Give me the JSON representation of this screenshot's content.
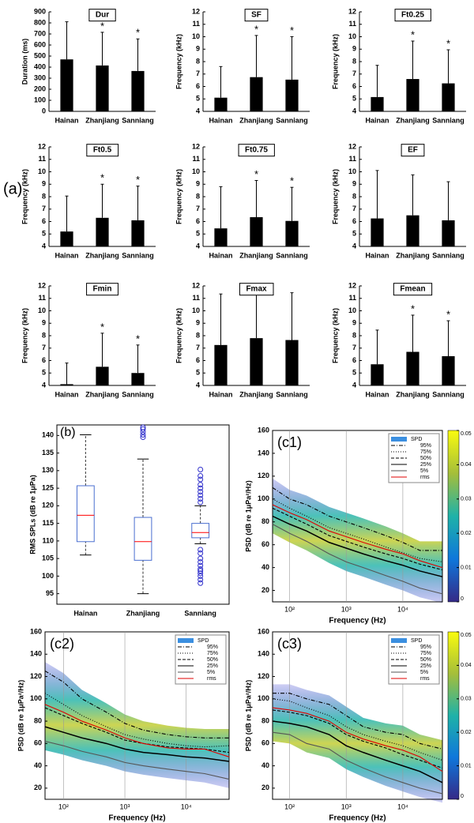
{
  "figure_label": "(a)",
  "chart_data": [
    {
      "type": "bar",
      "title": "Dur",
      "ylabel": "Duration (ms)",
      "categories": [
        "Hainan",
        "Zhanjiang",
        "Sanniang"
      ],
      "values": [
        470,
        415,
        365
      ],
      "errors": [
        340,
        300,
        290
      ],
      "markers": [
        null,
        "*",
        "*"
      ],
      "ylim": [
        0,
        900
      ],
      "yticks": [
        0,
        100,
        200,
        300,
        400,
        500,
        600,
        700,
        800,
        900
      ],
      "color": "#000000"
    },
    {
      "type": "bar",
      "title": "SF",
      "ylabel": "Frequency (kHz)",
      "categories": [
        "Hainan",
        "Zhanjiang",
        "Sanniang"
      ],
      "values": [
        5.1,
        6.75,
        6.55
      ],
      "errors": [
        2.5,
        3.35,
        3.45
      ],
      "markers": [
        null,
        "*",
        "*"
      ],
      "ylim": [
        4,
        12
      ],
      "yticks": [
        4,
        5,
        6,
        7,
        8,
        9,
        10,
        11,
        12
      ],
      "color": "#000000"
    },
    {
      "type": "bar",
      "title": "Ft0.25",
      "ylabel": "Frequency (kHz)",
      "categories": [
        "Hainan",
        "Zhanjiang",
        "Sanniang"
      ],
      "values": [
        5.15,
        6.6,
        6.25
      ],
      "errors": [
        2.55,
        3.05,
        2.7
      ],
      "markers": [
        null,
        "*",
        "*"
      ],
      "ylim": [
        4,
        12
      ],
      "yticks": [
        4,
        5,
        6,
        7,
        8,
        9,
        10,
        11,
        12
      ],
      "color": "#000000"
    },
    {
      "type": "bar",
      "title": "Ft0.5",
      "ylabel": "Frequency (kHz)",
      "categories": [
        "Hainan",
        "Zhanjiang",
        "Sanniang"
      ],
      "values": [
        5.2,
        6.3,
        6.1
      ],
      "errors": [
        2.85,
        2.7,
        2.75
      ],
      "markers": [
        null,
        "*",
        "*"
      ],
      "ylim": [
        4,
        12
      ],
      "yticks": [
        4,
        5,
        6,
        7,
        8,
        9,
        10,
        11,
        12
      ],
      "color": "#000000"
    },
    {
      "type": "bar",
      "title": "Ft0.75",
      "ylabel": "Frequency (kHz)",
      "categories": [
        "Hainan",
        "Zhanjiang",
        "Sanniang"
      ],
      "values": [
        5.45,
        6.35,
        6.05
      ],
      "errors": [
        3.35,
        2.95,
        2.7
      ],
      "markers": [
        null,
        "*",
        "*"
      ],
      "ylim": [
        4,
        12
      ],
      "yticks": [
        4,
        5,
        6,
        7,
        8,
        9,
        10,
        11,
        12
      ],
      "color": "#000000"
    },
    {
      "type": "bar",
      "title": "EF",
      "ylabel": "Frequency (kHz)",
      "categories": [
        "Hainan",
        "Zhanjiang",
        "Sanniang"
      ],
      "values": [
        6.25,
        6.5,
        6.1
      ],
      "errors": [
        3.85,
        3.25,
        3.1
      ],
      "markers": [
        null,
        null,
        null
      ],
      "ylim": [
        4,
        12
      ],
      "yticks": [
        4,
        5,
        6,
        7,
        8,
        9,
        10,
        11,
        12
      ],
      "color": "#000000"
    },
    {
      "type": "bar",
      "title": "Fmin",
      "ylabel": "Frequency (kHz)",
      "categories": [
        "Hainan",
        "Zhanjiang",
        "Sanniang"
      ],
      "values": [
        4.1,
        5.5,
        5.0
      ],
      "errors": [
        1.7,
        2.7,
        2.25
      ],
      "markers": [
        null,
        "*",
        "*"
      ],
      "ylim": [
        4,
        12
      ],
      "yticks": [
        4,
        5,
        6,
        7,
        8,
        9,
        10,
        11,
        12
      ],
      "color": "#000000"
    },
    {
      "type": "bar",
      "title": "Fmax",
      "ylabel": "Frequency (kHz)",
      "categories": [
        "Hainan",
        "Zhanjiang",
        "Sanniang"
      ],
      "values": [
        7.25,
        7.8,
        7.65
      ],
      "errors": [
        4.1,
        3.5,
        3.8
      ],
      "markers": [
        null,
        null,
        null
      ],
      "ylim": [
        4,
        12
      ],
      "yticks": [
        4,
        5,
        6,
        7,
        8,
        9,
        10,
        11,
        12
      ],
      "color": "#000000"
    },
    {
      "type": "bar",
      "title": "Fmean",
      "ylabel": "Frequency (kHz)",
      "categories": [
        "Hainan",
        "Zhanjiang",
        "Sanniang"
      ],
      "values": [
        5.7,
        6.7,
        6.35
      ],
      "errors": [
        2.75,
        2.95,
        2.85
      ],
      "markers": [
        null,
        "*",
        "*"
      ],
      "ylim": [
        4,
        12
      ],
      "yticks": [
        4,
        5,
        6,
        7,
        8,
        9,
        10,
        11,
        12
      ],
      "color": "#000000"
    },
    {
      "type": "box",
      "title": "(b)",
      "ylabel": "RMS SPLs (dB re 1μPa)",
      "categories": [
        "Hainan",
        "Zhanjiang",
        "Sanniang"
      ],
      "boxes": [
        {
          "whisker_low": 106,
          "q1": 109.8,
          "median": 117.3,
          "q3": 125.7,
          "whisker_high": 140.2,
          "outliers": []
        },
        {
          "whisker_low": 95,
          "q1": 104.5,
          "median": 109.8,
          "q3": 116.7,
          "whisker_high": 133.3,
          "outliers": [
            139.5,
            140.2,
            141,
            141.8,
            142.3
          ]
        },
        {
          "whisker_low": 109.2,
          "q1": 110.9,
          "median": 112.4,
          "q3": 115,
          "whisker_high": 120,
          "outliers": [
            121,
            122,
            123,
            124,
            125,
            126,
            127.5,
            128.5,
            130.3,
            98,
            99,
            100,
            100.8,
            101.5,
            102,
            103,
            104,
            105,
            106.5,
            107.5
          ]
        }
      ],
      "box_color": "#4a6fd0",
      "median_color": "#ff0000",
      "outlier_color": "#3333cc",
      "ylim": [
        92,
        143
      ],
      "yticks": [
        95,
        100,
        105,
        110,
        115,
        120,
        125,
        130,
        135,
        140
      ]
    },
    {
      "type": "spd",
      "title": "(c1)",
      "xlabel": "Frequency (Hz)",
      "ylabel": "PSD (dB re 1μPa²/Hz)",
      "density_label": "SPD",
      "density_color": "#3b8fe0",
      "x": [
        50,
        100,
        200,
        500,
        1000,
        2000,
        5000,
        10000,
        20000,
        50000
      ],
      "log_x": true,
      "xlim": [
        50,
        50000
      ],
      "xticks": [
        {
          "value": 100,
          "label": "10²"
        },
        {
          "value": 1000,
          "label": "10³"
        },
        {
          "value": 10000,
          "label": "10⁴"
        }
      ],
      "ylim": [
        10,
        160
      ],
      "yticks": [
        20,
        40,
        60,
        80,
        100,
        120,
        140,
        160
      ],
      "grid": true,
      "series": [
        {
          "name": "95%",
          "color": "#000000",
          "style": "dashdot",
          "values": [
            110,
            100,
            95,
            85,
            80,
            75,
            68,
            62,
            55,
            55
          ]
        },
        {
          "name": "75%",
          "color": "#000000",
          "style": "dotted",
          "values": [
            100,
            92,
            85,
            75,
            70,
            65,
            58,
            53,
            48,
            45
          ]
        },
        {
          "name": "50%",
          "color": "#000000",
          "style": "dashed",
          "values": [
            92,
            85,
            78,
            68,
            63,
            58,
            52,
            48,
            43,
            38
          ]
        },
        {
          "name": "25%",
          "color": "#000000",
          "style": "solid",
          "values": [
            85,
            78,
            72,
            62,
            57,
            52,
            46,
            42,
            37,
            32
          ]
        },
        {
          "name": "5%",
          "color": "#555555",
          "style": "solid",
          "values": [
            78,
            70,
            63,
            52,
            45,
            40,
            33,
            28,
            22,
            17
          ]
        },
        {
          "name": "rms",
          "color": "#e00000",
          "style": "solid",
          "values": [
            95,
            88,
            82,
            72,
            67,
            62,
            56,
            52,
            46,
            40
          ]
        }
      ],
      "colorbar": true,
      "clim": [
        0,
        0.05
      ],
      "cticks": [
        0,
        0.01,
        0.02,
        0.03,
        0.04,
        0.05
      ]
    },
    {
      "type": "spd",
      "title": "(c2)",
      "xlabel": "Frequency (Hz)",
      "ylabel": "PSD (dB re 1μPa²/Hz)",
      "density_label": "SPD",
      "density_color": "#3b8fe0",
      "x": [
        50,
        100,
        200,
        500,
        1000,
        2000,
        5000,
        10000,
        20000,
        50000
      ],
      "log_x": true,
      "xlim": [
        50,
        50000
      ],
      "xticks": [
        {
          "value": 100,
          "label": "10²"
        },
        {
          "value": 1000,
          "label": "10³"
        },
        {
          "value": 10000,
          "label": "10⁴"
        }
      ],
      "ylim": [
        10,
        160
      ],
      "yticks": [
        20,
        40,
        60,
        80,
        100,
        120,
        140,
        160
      ],
      "grid": true,
      "series": [
        {
          "name": "95%",
          "color": "#000000",
          "style": "dashdot",
          "values": [
            125,
            115,
            100,
            88,
            78,
            72,
            68,
            66,
            65,
            65
          ]
        },
        {
          "name": "75%",
          "color": "#000000",
          "style": "dotted",
          "values": [
            105,
            95,
            85,
            75,
            68,
            64,
            60,
            58,
            57,
            58
          ]
        },
        {
          "name": "50%",
          "color": "#000000",
          "style": "dashed",
          "values": [
            92,
            85,
            78,
            70,
            63,
            60,
            57,
            56,
            55,
            52
          ]
        },
        {
          "name": "25%",
          "color": "#000000",
          "style": "solid",
          "values": [
            75,
            70,
            65,
            60,
            55,
            52,
            50,
            48,
            47,
            44
          ]
        },
        {
          "name": "5%",
          "color": "#555555",
          "style": "solid",
          "values": [
            62,
            58,
            53,
            48,
            43,
            40,
            37,
            35,
            33,
            28
          ]
        },
        {
          "name": "rms",
          "color": "#e00000",
          "style": "solid",
          "values": [
            95,
            88,
            80,
            72,
            65,
            60,
            56,
            55,
            55,
            48
          ]
        }
      ],
      "colorbar": false
    },
    {
      "type": "spd",
      "title": "(c3)",
      "xlabel": "Frequency (Hz)",
      "ylabel": "PSD (dB re 1μPa²/Hz)",
      "density_label": "SPD",
      "density_color": "#3b8fe0",
      "x": [
        50,
        100,
        200,
        500,
        1000,
        2000,
        5000,
        10000,
        20000,
        50000
      ],
      "log_x": true,
      "xlim": [
        50,
        50000
      ],
      "xticks": [
        {
          "value": 100,
          "label": "10²"
        },
        {
          "value": 1000,
          "label": "10³"
        },
        {
          "value": 10000,
          "label": "10⁴"
        }
      ],
      "ylim": [
        10,
        160
      ],
      "yticks": [
        20,
        40,
        60,
        80,
        100,
        120,
        140,
        160
      ],
      "grid": true,
      "series": [
        {
          "name": "95%",
          "color": "#000000",
          "style": "dashdot",
          "values": [
            105,
            105,
            100,
            95,
            85,
            75,
            70,
            68,
            60,
            55
          ]
        },
        {
          "name": "75%",
          "color": "#000000",
          "style": "dotted",
          "values": [
            100,
            98,
            92,
            85,
            75,
            68,
            62,
            58,
            52,
            45
          ]
        },
        {
          "name": "50%",
          "color": "#000000",
          "style": "dashed",
          "values": [
            90,
            88,
            85,
            78,
            68,
            62,
            56,
            50,
            45,
            38
          ]
        },
        {
          "name": "25%",
          "color": "#000000",
          "style": "solid",
          "values": [
            80,
            78,
            75,
            68,
            58,
            52,
            45,
            40,
            35,
            25
          ]
        },
        {
          "name": "5%",
          "color": "#555555",
          "style": "solid",
          "values": [
            70,
            68,
            60,
            55,
            45,
            38,
            30,
            25,
            20,
            15
          ]
        },
        {
          "name": "rms",
          "color": "#e00000",
          "style": "solid",
          "values": [
            92,
            90,
            87,
            80,
            70,
            64,
            58,
            54,
            48,
            35
          ]
        }
      ],
      "colorbar": true,
      "clim": [
        0,
        0.05
      ],
      "cticks": [
        0,
        0.01,
        0.02,
        0.03,
        0.04,
        0.05
      ]
    }
  ]
}
